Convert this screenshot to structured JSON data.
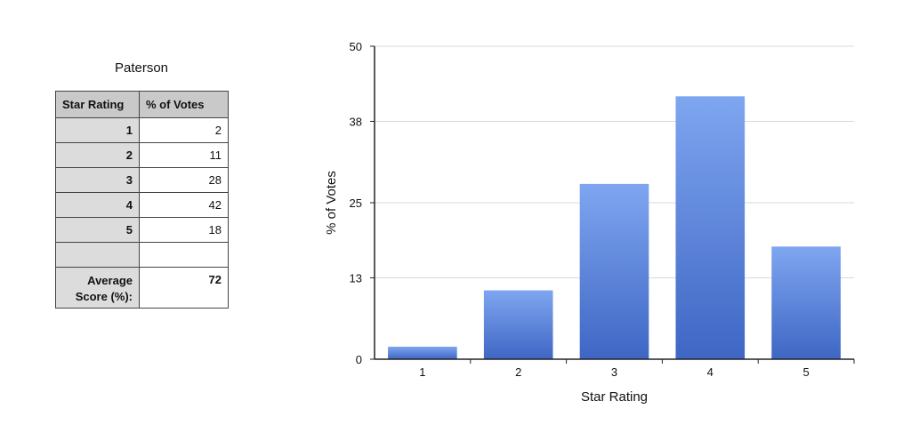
{
  "table": {
    "title": "Paterson",
    "headers": [
      "Star Rating",
      "% of Votes"
    ],
    "rows": [
      {
        "rating": "1",
        "votes": "2"
      },
      {
        "rating": "2",
        "votes": "11"
      },
      {
        "rating": "3",
        "votes": "28"
      },
      {
        "rating": "4",
        "votes": "42"
      },
      {
        "rating": "5",
        "votes": "18"
      },
      {
        "rating": "",
        "votes": ""
      }
    ],
    "average_label_line1": "Average",
    "average_label_line2": "Score (%):",
    "average_value": "72"
  },
  "chart_data": {
    "type": "bar",
    "categories": [
      "1",
      "2",
      "3",
      "4",
      "5"
    ],
    "values": [
      2,
      11,
      28,
      42,
      18
    ],
    "xlabel": "Star Rating",
    "ylabel": "% of Votes",
    "ylim": [
      0,
      50
    ],
    "yticks": [
      "0",
      "13",
      "25",
      "38",
      "50"
    ],
    "grid": true,
    "colors": {
      "bar_top": "#7ea6f0",
      "bar_bottom": "#3f66c4",
      "grid": "#d9d9d9",
      "axis": "#222222"
    }
  }
}
